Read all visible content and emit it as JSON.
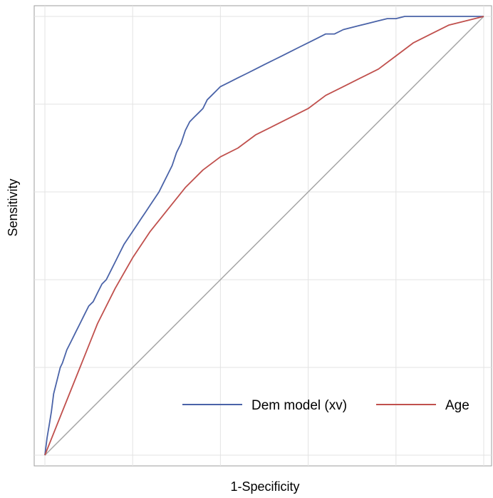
{
  "chart_data": {
    "type": "line",
    "xlabel": "1-Specificity",
    "ylabel": "Sensitivity",
    "xlim": [
      0,
      1
    ],
    "ylim": [
      0,
      1
    ],
    "grid": true,
    "legend": "bottom-right",
    "reference_line": {
      "x": [
        0,
        1
      ],
      "y": [
        0,
        1
      ],
      "color": "#a6a6a6"
    },
    "series": [
      {
        "name": "Dem model (xv)",
        "color": "#4a63a8",
        "x": [
          0.0,
          0.005,
          0.01,
          0.015,
          0.02,
          0.025,
          0.03,
          0.035,
          0.04,
          0.05,
          0.06,
          0.07,
          0.08,
          0.09,
          0.1,
          0.11,
          0.12,
          0.13,
          0.14,
          0.15,
          0.16,
          0.17,
          0.18,
          0.19,
          0.2,
          0.21,
          0.22,
          0.23,
          0.24,
          0.25,
          0.26,
          0.27,
          0.28,
          0.29,
          0.3,
          0.31,
          0.32,
          0.33,
          0.34,
          0.35,
          0.36,
          0.37,
          0.38,
          0.39,
          0.4,
          0.42,
          0.44,
          0.46,
          0.48,
          0.5,
          0.52,
          0.54,
          0.56,
          0.58,
          0.6,
          0.62,
          0.64,
          0.66,
          0.68,
          0.7,
          0.72,
          0.74,
          0.76,
          0.78,
          0.8,
          0.82,
          0.84,
          0.86,
          0.88,
          0.9,
          0.92,
          0.94,
          0.96,
          0.98,
          1.0
        ],
        "y": [
          0.0,
          0.04,
          0.07,
          0.1,
          0.14,
          0.16,
          0.18,
          0.2,
          0.21,
          0.24,
          0.26,
          0.28,
          0.3,
          0.32,
          0.34,
          0.35,
          0.37,
          0.39,
          0.4,
          0.42,
          0.44,
          0.46,
          0.48,
          0.495,
          0.51,
          0.525,
          0.54,
          0.555,
          0.57,
          0.585,
          0.6,
          0.62,
          0.64,
          0.66,
          0.69,
          0.71,
          0.74,
          0.76,
          0.77,
          0.78,
          0.79,
          0.81,
          0.82,
          0.83,
          0.84,
          0.85,
          0.86,
          0.87,
          0.88,
          0.89,
          0.9,
          0.91,
          0.92,
          0.93,
          0.94,
          0.95,
          0.96,
          0.96,
          0.97,
          0.975,
          0.98,
          0.985,
          0.99,
          0.995,
          0.995,
          1.0,
          1.0,
          1.0,
          1.0,
          1.0,
          1.0,
          1.0,
          1.0,
          1.0,
          1.0
        ]
      },
      {
        "name": "Age",
        "color": "#c0504d",
        "x": [
          0.0,
          0.04,
          0.08,
          0.12,
          0.16,
          0.2,
          0.24,
          0.28,
          0.32,
          0.36,
          0.4,
          0.44,
          0.48,
          0.52,
          0.56,
          0.6,
          0.64,
          0.68,
          0.72,
          0.76,
          0.8,
          0.84,
          0.88,
          0.92,
          0.96,
          1.0
        ],
        "y": [
          0.0,
          0.1,
          0.2,
          0.3,
          0.38,
          0.45,
          0.51,
          0.56,
          0.61,
          0.65,
          0.68,
          0.7,
          0.73,
          0.75,
          0.77,
          0.79,
          0.82,
          0.84,
          0.86,
          0.88,
          0.91,
          0.94,
          0.96,
          0.98,
          0.99,
          1.0
        ]
      }
    ]
  }
}
